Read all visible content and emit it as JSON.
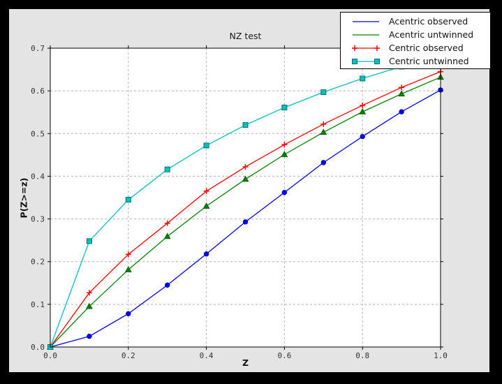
{
  "window": {
    "bg": "#000000"
  },
  "figure": {
    "bg": "#e4e4e4",
    "plot_bg": "#ffffff",
    "grid_color": "#b3b3b3",
    "spine_color": "#000000",
    "tick_label_color": "#333333"
  },
  "chart_data": {
    "type": "line",
    "title": "NZ test",
    "xlabel": "Z",
    "ylabel": "P(Z>=z)",
    "xlim": [
      0,
      1.0
    ],
    "ylim": [
      0,
      0.7
    ],
    "grid": true,
    "legend_position": "upper right",
    "x_ticks": [
      0,
      0.2,
      0.4,
      0.6,
      0.8,
      1.0
    ],
    "x_tick_labels": [
      "0.0",
      "0.2",
      "0.4",
      "0.6",
      "0.8",
      "1.0"
    ],
    "y_ticks": [
      0,
      0.1,
      0.2,
      0.3,
      0.4,
      0.5,
      0.6,
      0.7
    ],
    "y_tick_labels": [
      "0.0",
      "0.1",
      "0.2",
      "0.3",
      "0.4",
      "0.5",
      "0.6",
      "0.7"
    ],
    "x": [
      0,
      0.1,
      0.2,
      0.3,
      0.4,
      0.5,
      0.6,
      0.7,
      0.8,
      0.9,
      1.0
    ],
    "series": [
      {
        "name": "Acentric observed",
        "color": "#0000ff",
        "marker": "circle",
        "marker_edge": "#0000b8",
        "legend_markers": false,
        "values": [
          0,
          0.025,
          0.078,
          0.145,
          0.218,
          0.293,
          0.362,
          0.432,
          0.493,
          0.551,
          0.602
        ]
      },
      {
        "name": "Acentric untwinned",
        "color": "#008000",
        "marker": "triangle",
        "marker_edge": "#005c00",
        "legend_markers": false,
        "values": [
          0,
          0.095,
          0.181,
          0.259,
          0.33,
          0.393,
          0.451,
          0.503,
          0.551,
          0.593,
          0.632
        ]
      },
      {
        "name": "Centric observed",
        "color": "#ff0000",
        "marker": "plus",
        "marker_edge": "#ff0000",
        "legend_markers": true,
        "values": [
          0,
          0.127,
          0.217,
          0.29,
          0.365,
          0.422,
          0.474,
          0.522,
          0.566,
          0.608,
          0.645
        ]
      },
      {
        "name": "Centric untwinned",
        "color": "#00bfbf",
        "marker": "square",
        "marker_edge": "#006e6e",
        "legend_markers": true,
        "values": [
          0,
          0.248,
          0.345,
          0.416,
          0.472,
          0.52,
          0.561,
          0.597,
          0.629,
          0.657,
          0.683
        ]
      }
    ]
  }
}
